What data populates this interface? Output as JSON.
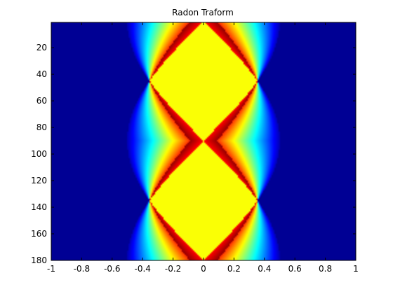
{
  "chart_data": {
    "type": "heatmap",
    "title": "Radon Traform",
    "xlabel": "",
    "ylabel": "",
    "xlim": [
      -1,
      1
    ],
    "ylim": [
      1,
      180
    ],
    "y_direction": "reversed",
    "colormap": "jet",
    "grid": false,
    "x_ticks": [
      -1,
      -0.8,
      -0.6,
      -0.4,
      -0.2,
      0,
      0.2,
      0.4,
      0.6,
      0.8,
      1
    ],
    "x_tick_labels": [
      "-1",
      "-0.8",
      "-0.6",
      "-0.4",
      "-0.2",
      "0",
      "0.2",
      "0.4",
      "0.6",
      "0.8",
      "1"
    ],
    "y_ticks": [
      20,
      40,
      60,
      80,
      100,
      120,
      140,
      160,
      180
    ],
    "y_tick_labels": [
      "20",
      "40",
      "60",
      "80",
      "100",
      "120",
      "140",
      "160",
      "180"
    ],
    "colors": {
      "low": "#00008f",
      "cyan": "#00ffff",
      "mid_green": "#80ff80",
      "yellow": "#ffff00",
      "orange": "#ff8000",
      "dark_red": "#800000"
    }
  }
}
